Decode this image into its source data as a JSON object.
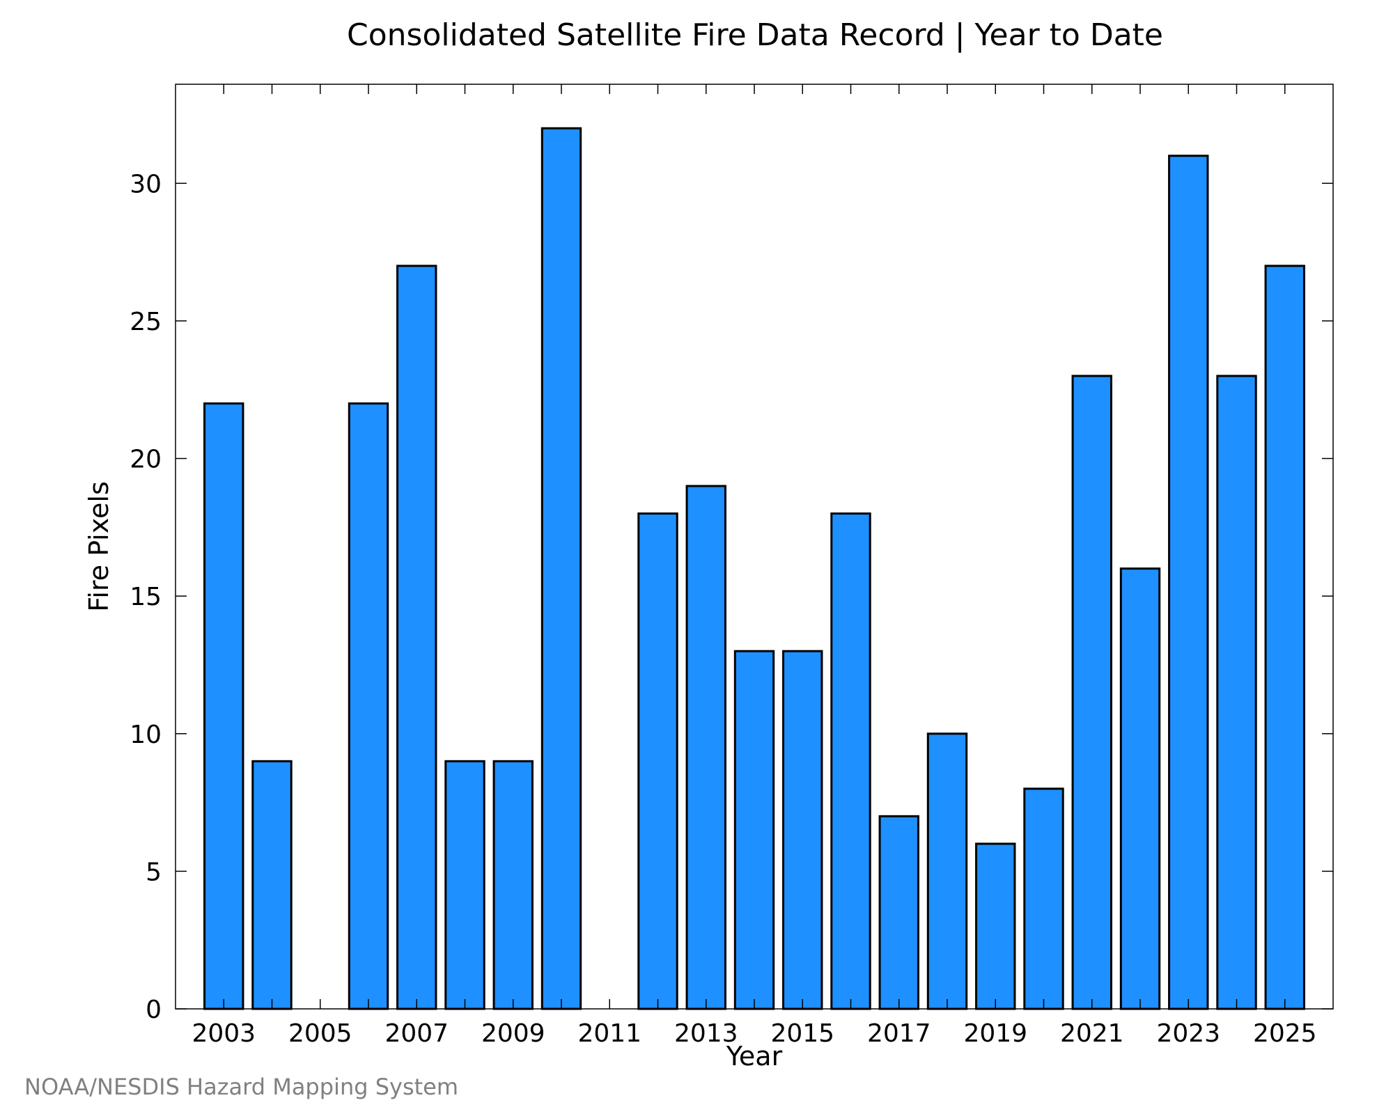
{
  "chart_data": {
    "type": "bar",
    "title": "Consolidated Satellite Fire Data Record | Year to Date",
    "xlabel": "Year",
    "ylabel": "Fire Pixels",
    "categories": [
      "2003",
      "2004",
      "2005",
      "2006",
      "2007",
      "2008",
      "2009",
      "2010",
      "2011",
      "2012",
      "2013",
      "2014",
      "2015",
      "2016",
      "2017",
      "2018",
      "2019",
      "2020",
      "2021",
      "2022",
      "2023",
      "2024",
      "2025"
    ],
    "values": [
      22,
      9,
      0,
      22,
      27,
      9,
      9,
      32,
      0,
      18,
      19,
      13,
      13,
      18,
      7,
      10,
      6,
      8,
      23,
      16,
      31,
      23,
      27
    ],
    "x_tick_labels": [
      "2003",
      "2005",
      "2007",
      "2009",
      "2011",
      "2013",
      "2015",
      "2017",
      "2019",
      "2021",
      "2023",
      "2025"
    ],
    "y_ticks": [
      0,
      5,
      10,
      15,
      20,
      25,
      30
    ],
    "ylim": [
      0,
      33.6
    ],
    "grid": false,
    "legend": "none",
    "bar_color": "#1e90ff",
    "bar_edge_color": "#000000"
  },
  "footer": {
    "source": "NOAA/NESDIS Hazard Mapping System"
  }
}
